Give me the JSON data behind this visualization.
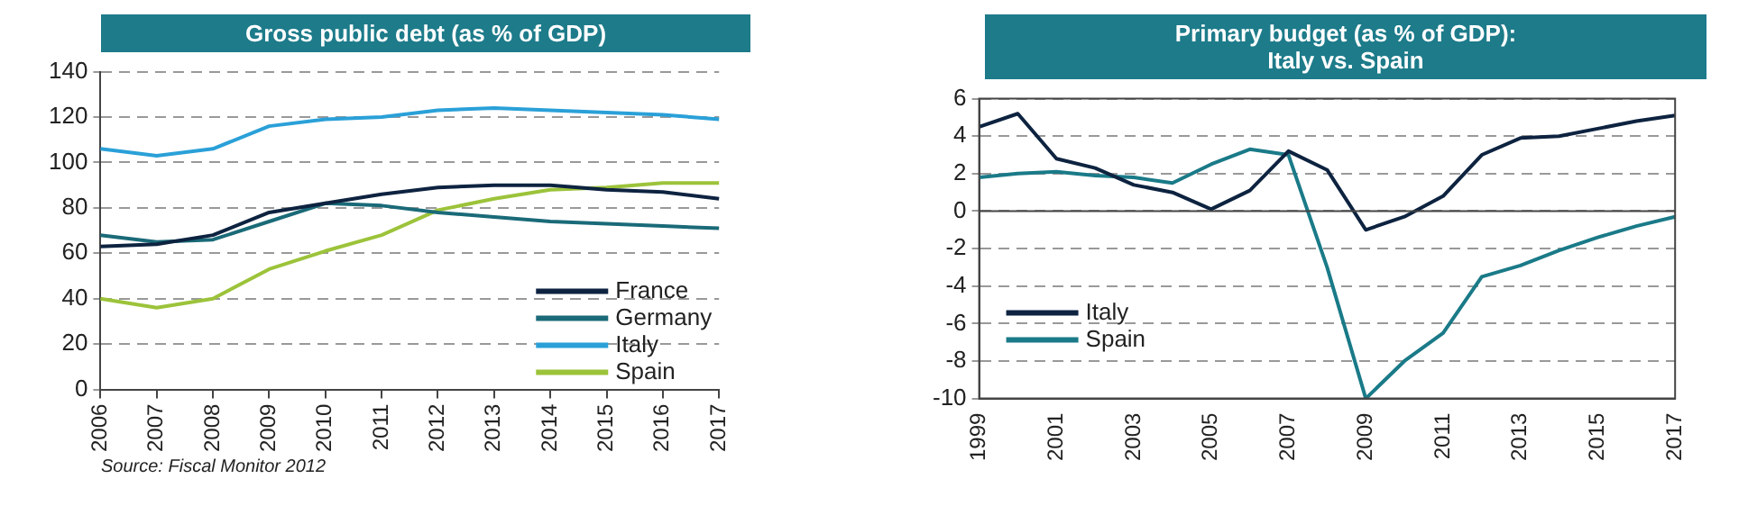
{
  "chart_data": [
    {
      "type": "line",
      "title": "Gross public debt (as % of GDP)",
      "categories": [
        "2006",
        "2007",
        "2008",
        "2009",
        "2010",
        "2011",
        "2012",
        "2013",
        "2014",
        "2015",
        "2016",
        "2017"
      ],
      "series": [
        {
          "name": "France",
          "color": "#0d2340",
          "values": [
            63,
            64,
            68,
            78,
            82,
            86,
            89,
            90,
            90,
            88,
            87,
            84
          ]
        },
        {
          "name": "Germany",
          "color": "#1a6a78",
          "values": [
            68,
            65,
            66,
            74,
            82,
            81,
            78,
            76,
            74,
            73,
            72,
            71
          ]
        },
        {
          "name": "Italy",
          "color": "#2aa0d8",
          "values": [
            106,
            103,
            106,
            116,
            119,
            120,
            123,
            124,
            123,
            122,
            121,
            119
          ]
        },
        {
          "name": "Spain",
          "color": "#9cc33a",
          "values": [
            40,
            36,
            40,
            53,
            61,
            68,
            79,
            84,
            88,
            89,
            91,
            91
          ]
        }
      ],
      "ylim": [
        0,
        140
      ],
      "yticks": [
        0,
        20,
        40,
        60,
        80,
        100,
        120,
        140
      ],
      "grid": "y",
      "legend": "bottom right",
      "marker": "none",
      "annotations": [
        "Source: Fiscal Monitor 2012"
      ]
    },
    {
      "type": "line",
      "title": "Primary budget (as % of GDP): Italy vs. Spain",
      "x": [
        1999,
        2000,
        2001,
        2002,
        2003,
        2004,
        2005,
        2006,
        2007,
        2008,
        2009,
        2010,
        2011,
        2012,
        2013,
        2014,
        2015,
        2016,
        2017
      ],
      "series": [
        {
          "name": "Italy",
          "color": "#0d2340",
          "values": [
            4.5,
            5.2,
            2.8,
            2.3,
            1.4,
            1.0,
            0.1,
            1.1,
            3.2,
            2.2,
            -1.0,
            -0.3,
            0.8,
            3.0,
            3.9,
            4.0,
            4.4,
            4.8,
            5.1
          ]
        },
        {
          "name": "Spain",
          "color": "#1a7a88",
          "values": [
            1.8,
            2.0,
            2.1,
            1.9,
            1.8,
            1.5,
            2.5,
            3.3,
            3.0,
            -3.0,
            -10.0,
            -8.0,
            -6.5,
            -3.5,
            -2.9,
            -2.1,
            -1.4,
            -0.8,
            -0.3
          ]
        }
      ],
      "xlim": [
        1999,
        2017
      ],
      "xticks": [
        1999,
        2001,
        2003,
        2005,
        2007,
        2009,
        2011,
        2013,
        2015,
        2017
      ],
      "ylim": [
        -10,
        6
      ],
      "yticks": [
        -10,
        -8,
        -6,
        -4,
        -2,
        0,
        2,
        4,
        6
      ],
      "grid": "y",
      "legend": "bottom left",
      "marker": "none"
    }
  ]
}
